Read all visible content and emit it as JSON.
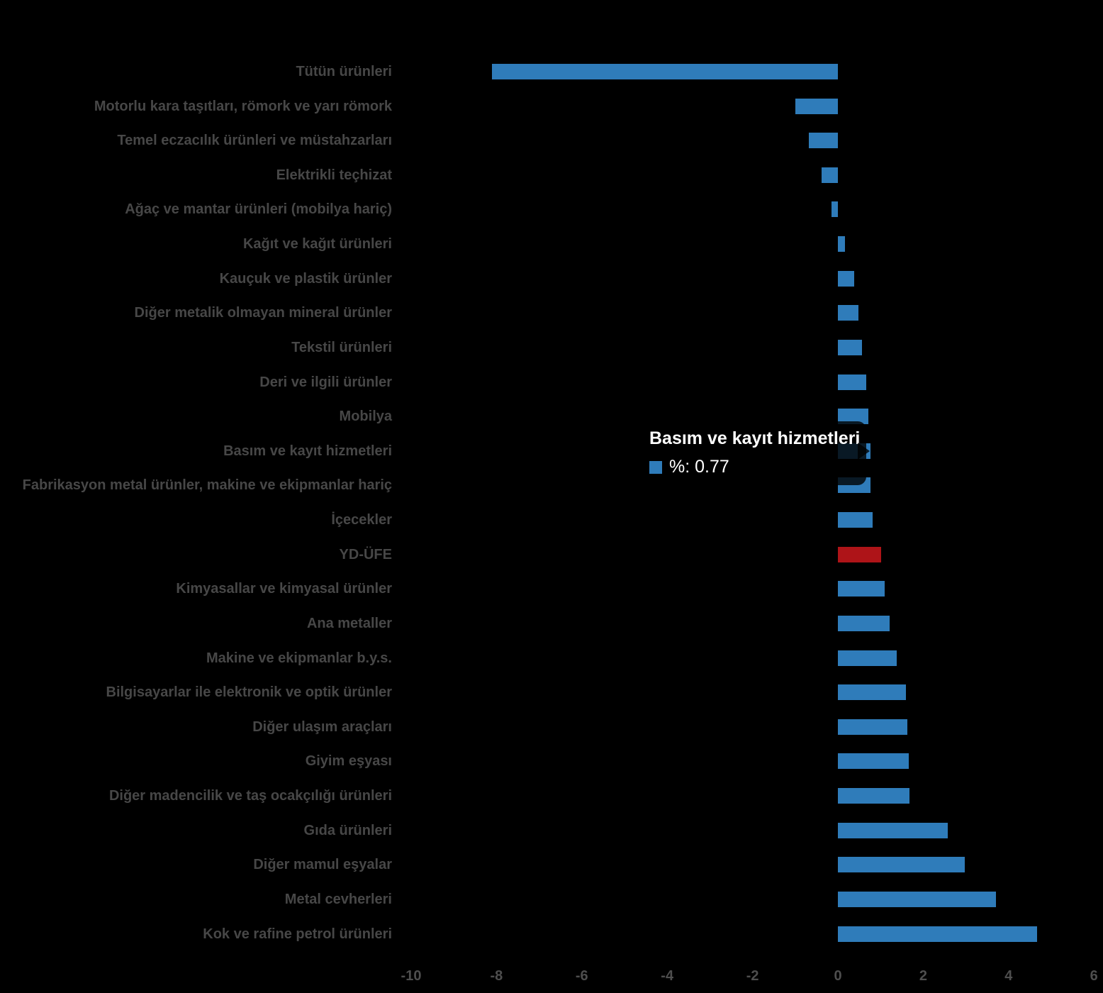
{
  "chart_data": {
    "type": "bar",
    "orientation": "horizontal",
    "title": "",
    "xlabel": "",
    "ylabel": "",
    "unit": "%",
    "xlim": [
      -10,
      6
    ],
    "x_ticks": [
      "-10",
      "-8",
      "-6",
      "-4",
      "-2",
      "0",
      "2",
      "4",
      "6"
    ],
    "grid": false,
    "legend_position": "none",
    "categories": [
      "Tütün ürünleri",
      "Motorlu kara taşıtları, römork ve yarı römork",
      "Temel eczacılık ürünleri ve müstahzarları",
      "Elektrikli teçhizat",
      "Ağaç ve mantar ürünleri (mobilya hariç)",
      "Kağıt ve kağıt ürünleri",
      "Kauçuk ve plastik ürünler",
      "Diğer metalik olmayan mineral ürünler",
      "Tekstil ürünleri",
      "Deri ve ilgili ürünler",
      "Mobilya",
      "Basım ve kayıt hizmetleri",
      "Fabrikasyon metal ürünler, makine ve ekipmanlar hariç",
      "İçecekler",
      "YD-ÜFE",
      "Kimyasallar ve kimyasal ürünler",
      "Ana metaller",
      "Makine ve ekipmanlar b.y.s.",
      "Bilgisayarlar ile elektronik ve optik ürünler",
      "Diğer ulaşım araçları",
      "Giyim eşyası",
      "Diğer madencilik ve taş ocakçılığı ürünleri",
      "Gıda ürünleri",
      "Diğer mamul eşyalar",
      "Metal cevherleri",
      "Kok ve rafine petrol ürünleri"
    ],
    "values": [
      -8.1,
      -0.99,
      -0.68,
      -0.39,
      -0.15,
      0.17,
      0.39,
      0.49,
      0.57,
      0.66,
      0.71,
      0.77,
      0.77,
      0.81,
      1.02,
      1.1,
      1.21,
      1.38,
      1.6,
      1.63,
      1.66,
      1.67,
      2.58,
      2.97,
      3.7,
      4.66
    ],
    "bar_colors": {
      "default": "#2F7CBA",
      "highlight_category": "YD-ÜFE",
      "highlight": "#AE1418"
    },
    "tooltip": {
      "category": "Basım ve kayıt hizmetleri",
      "title": "Basım ve kayıt hizmetleri",
      "value": 0.77,
      "value_label": "%: 0.77",
      "swatch_color": "#2F7CBA"
    }
  },
  "colors": {
    "background": "#000000",
    "category_label": "#474747",
    "axis_label": "#4E4E4E",
    "tooltip_background": "rgba(0,0,0,0.80)",
    "tooltip_text": "#FFFFFF"
  }
}
